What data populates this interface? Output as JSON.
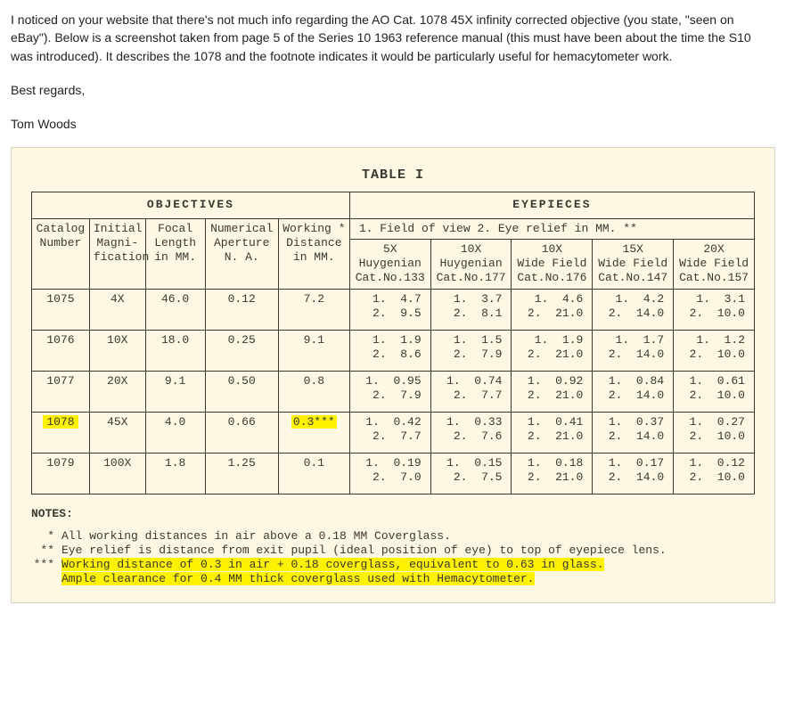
{
  "intro": {
    "p1": "I noticed on your website that there's not much info regarding the AO Cat. 1078 45X infinity corrected objective (you state, \"seen on eBay\").  Below is a screenshot taken from page 5 of the Series 10 1963 reference manual (this must have been about the time the S10 was introduced).  It describes the 1078 and the footnote indicates it would be particularly useful for hemacytometer work.",
    "p2": "Best regards,",
    "p3": "Tom Woods"
  },
  "scan": {
    "title": "TABLE I",
    "groups": {
      "obj": "OBJECTIVES",
      "eye": "EYEPIECES"
    },
    "eyeLegend": "1.   Field of view          2.  Eye relief in MM. **",
    "objHeaders": {
      "cat": "Catalog\nNumber",
      "mag": "Initial\nMagni-\nfication",
      "fl": "Focal\nLength\nin MM.",
      "na": "Numerical\nAperture\nN. A.",
      "wd": "Working *\nDistance\nin MM."
    },
    "eyeHeaders": [
      "5X\nHuygenian\nCat.No.133",
      "10X\nHuygenian\nCat.No.177",
      "10X\nWide Field\nCat.No.176",
      "15X\nWide Field\nCat.No.147",
      "20X\nWide Field\nCat.No.157"
    ],
    "rows": [
      {
        "cat": "1075",
        "mag": "4X",
        "fl": "46.0",
        "na": "0.12",
        "wd": "7.2",
        "e": [
          [
            "4.7",
            "9.5"
          ],
          [
            "3.7",
            "8.1"
          ],
          [
            "4.6",
            "21.0"
          ],
          [
            "4.2",
            "14.0"
          ],
          [
            "3.1",
            "10.0"
          ]
        ]
      },
      {
        "cat": "1076",
        "mag": "10X",
        "fl": "18.0",
        "na": "0.25",
        "wd": "9.1",
        "e": [
          [
            "1.9",
            "8.6"
          ],
          [
            "1.5",
            "7.9"
          ],
          [
            "1.9",
            "21.0"
          ],
          [
            "1.7",
            "14.0"
          ],
          [
            "1.2",
            "10.0"
          ]
        ]
      },
      {
        "cat": "1077",
        "mag": "20X",
        "fl": "9.1",
        "na": "0.50",
        "wd": "0.8",
        "e": [
          [
            "0.95",
            "7.9"
          ],
          [
            "0.74",
            "7.7"
          ],
          [
            "0.92",
            "21.0"
          ],
          [
            "0.84",
            "14.0"
          ],
          [
            "0.61",
            "10.0"
          ]
        ]
      },
      {
        "cat": "1078",
        "mag": "45X",
        "fl": "4.0",
        "na": "0.66",
        "wd": "0.3***",
        "hl": true,
        "e": [
          [
            "0.42",
            "7.7"
          ],
          [
            "0.33",
            "7.6"
          ],
          [
            "0.41",
            "21.0"
          ],
          [
            "0.37",
            "14.0"
          ],
          [
            "0.27",
            "10.0"
          ]
        ]
      },
      {
        "cat": "1079",
        "mag": "100X",
        "fl": "1.8",
        "na": "1.25",
        "wd": "0.1",
        "e": [
          [
            "0.19",
            "7.0"
          ],
          [
            "0.15",
            "7.5"
          ],
          [
            "0.18",
            "21.0"
          ],
          [
            "0.17",
            "14.0"
          ],
          [
            "0.12",
            "10.0"
          ]
        ]
      }
    ],
    "notes": {
      "title": "NOTES:",
      "items": [
        {
          "sym": "*",
          "txt": "All working distances in air above a 0.18 MM Coverglass."
        },
        {
          "sym": "**",
          "txt": "Eye relief is distance from exit pupil (ideal position of eye) to top of eyepiece lens."
        },
        {
          "sym": "***",
          "txt": "Working distance of 0.3 in air + 0.18 coverglass, equivalent to 0.63 in glass.",
          "hl": true
        },
        {
          "sym": "",
          "txt": "Ample clearance for 0.4 MM thick coverglass used with Hemacytometer.",
          "hl": true
        }
      ]
    },
    "colors": {
      "paper": "#fdf8e3",
      "ink": "#3a3830",
      "highlight": "#fef200"
    }
  }
}
